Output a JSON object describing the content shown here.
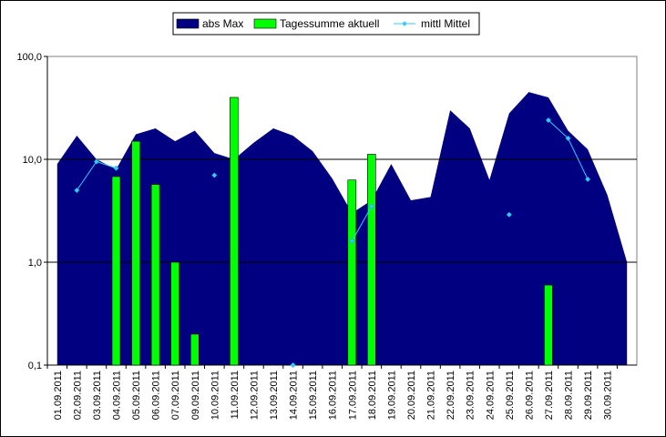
{
  "chart_data": {
    "type": "combo",
    "categories": [
      "01.09.2011",
      "02.09.2011",
      "03.09.2011",
      "04.09.2011",
      "05.09.2011",
      "06.09.2011",
      "07.09.2011",
      "09.09.2011",
      "10.09.2011",
      "11.09.2011",
      "12.09.2011",
      "13.09.2011",
      "14.09.2011",
      "15.09.2011",
      "16.09.2011",
      "17.09.2011",
      "18.09.2011",
      "19.09.2011",
      "20.09.2011",
      "21.09.2011",
      "22.09.2011",
      "23.09.2011",
      "24.09.2011",
      "25.09.2011",
      "26.09.2011",
      "27.09.2011",
      "28.09.2011",
      "29.09.2011",
      "30.09.2011",
      null
    ],
    "series": [
      {
        "name": "abs Max",
        "type": "area",
        "color": "#000080",
        "values": [
          9,
          17,
          10,
          8,
          17.5,
          20,
          15,
          19,
          11.5,
          10,
          14.5,
          20,
          17,
          12,
          6.5,
          3,
          4,
          9,
          4,
          4.3,
          30,
          20,
          6.3,
          28,
          45,
          40,
          19,
          12.5,
          4.5,
          1
        ]
      },
      {
        "name": "Tagessumme aktuell",
        "type": "bar",
        "color": "#00ff00",
        "values": [
          null,
          null,
          null,
          6.8,
          15,
          5.7,
          1,
          0.2,
          null,
          40,
          null,
          null,
          null,
          null,
          null,
          6.3,
          11.2,
          null,
          null,
          null,
          null,
          null,
          null,
          null,
          null,
          0.6,
          null,
          null,
          null,
          null
        ]
      },
      {
        "name": "mittl Mittel",
        "type": "line",
        "color": "#33ccff",
        "values": [
          null,
          5,
          9.5,
          8.2,
          null,
          null,
          null,
          null,
          7,
          null,
          null,
          null,
          0.1,
          null,
          null,
          1.6,
          3.5,
          null,
          null,
          null,
          null,
          null,
          null,
          2.9,
          null,
          24,
          16,
          6.4,
          null,
          null
        ]
      }
    ],
    "log_scale": true,
    "ylim": [
      0.1,
      100
    ],
    "yticks": [
      {
        "value": 0.1,
        "label": "0,1"
      },
      {
        "value": 1,
        "label": "1,0"
      },
      {
        "value": 10,
        "label": "10,0"
      },
      {
        "value": 100,
        "label": "100,0"
      }
    ],
    "grid": true,
    "legend": "top"
  }
}
